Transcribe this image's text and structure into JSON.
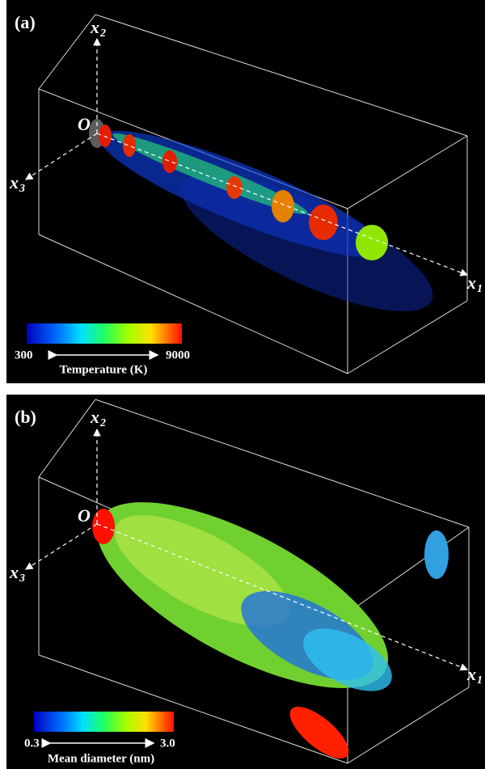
{
  "panels": [
    {
      "label": "(a)",
      "origin": "O",
      "axes": [
        {
          "name": "x",
          "sub": "2"
        },
        {
          "name": "x",
          "sub": "3"
        },
        {
          "name": "x",
          "sub": "1"
        }
      ],
      "colorbar": {
        "min": "300",
        "max": "9000",
        "title": "Temperature (K)"
      }
    },
    {
      "label": "(b)",
      "origin": "O",
      "axes": [
        {
          "name": "x",
          "sub": "2"
        },
        {
          "name": "x",
          "sub": "3"
        },
        {
          "name": "x",
          "sub": "1"
        }
      ],
      "colorbar": {
        "min": "0.3",
        "max": "3.0",
        "title": "Mean diameter (nm)"
      }
    }
  ]
}
